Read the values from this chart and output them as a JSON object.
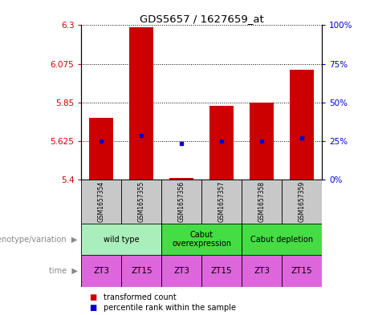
{
  "title": "GDS5657 / 1627659_at",
  "samples": [
    "GSM1657354",
    "GSM1657355",
    "GSM1657356",
    "GSM1657357",
    "GSM1657358",
    "GSM1657359"
  ],
  "bar_bottoms": [
    5.4,
    5.4,
    5.4,
    5.4,
    5.4,
    5.4
  ],
  "bar_tops": [
    5.76,
    6.29,
    5.41,
    5.83,
    5.85,
    6.04
  ],
  "blue_values": [
    5.625,
    5.655,
    5.61,
    5.625,
    5.625,
    5.645
  ],
  "ylim": [
    5.4,
    6.3
  ],
  "yticks_left": [
    5.4,
    5.625,
    5.85,
    6.075,
    6.3
  ],
  "yticks_right_vals": [
    0,
    25,
    50,
    75,
    100
  ],
  "bar_color": "#cc0000",
  "blue_color": "#0000cc",
  "bar_width": 0.6,
  "geno_labels": [
    "wild type",
    "Cabut\noverexpression",
    "Cabut depletion"
  ],
  "geno_ranges": [
    [
      0,
      2
    ],
    [
      2,
      4
    ],
    [
      4,
      6
    ]
  ],
  "geno_colors": [
    "#aaeebb",
    "#44dd44",
    "#44dd44"
  ],
  "time_values": [
    "ZT3",
    "ZT15",
    "ZT3",
    "ZT15",
    "ZT3",
    "ZT15"
  ],
  "time_color": "#dd66dd",
  "sample_bg_color": "#c8c8c8",
  "legend_red_label": "transformed count",
  "legend_blue_label": "percentile rank within the sample",
  "label_color": "#888888"
}
